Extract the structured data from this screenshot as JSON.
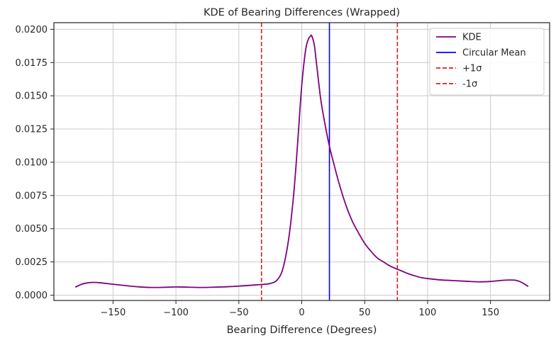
{
  "chart_data": {
    "type": "line",
    "title": "KDE of Bearing Differences (Wrapped)",
    "xlabel": "Bearing Difference (Degrees)",
    "ylabel": "",
    "xlim": [
      -197,
      197
    ],
    "ylim": [
      -0.0004,
      0.0205
    ],
    "x_ticks": [
      -150,
      -100,
      -50,
      0,
      50,
      100,
      150
    ],
    "x_tick_labels": [
      "−150",
      "−100",
      "−50",
      "0",
      "50",
      "100",
      "150"
    ],
    "y_ticks": [
      0.0,
      0.0025,
      0.005,
      0.0075,
      0.01,
      0.0125,
      0.015,
      0.0175,
      0.02
    ],
    "y_tick_labels": [
      "0.0000",
      "0.0025",
      "0.0050",
      "0.0075",
      "0.0100",
      "0.0125",
      "0.0150",
      "0.0175",
      "0.0200"
    ],
    "grid": true,
    "legend_position": "top-right",
    "series": [
      {
        "name": "KDE",
        "color": "#800080",
        "x": [
          -180,
          -175,
          -170,
          -165,
          -160,
          -150,
          -140,
          -130,
          -120,
          -110,
          -100,
          -90,
          -80,
          -70,
          -60,
          -50,
          -40,
          -32,
          -25,
          -20,
          -16,
          -13,
          -10,
          -7,
          -5,
          -3,
          0,
          3,
          5,
          7,
          8,
          10,
          12,
          15,
          18,
          22,
          26,
          30,
          35,
          40,
          45,
          50,
          55,
          60,
          65,
          70,
          76,
          80,
          85,
          90,
          95,
          100,
          110,
          120,
          130,
          140,
          150,
          160,
          165,
          170,
          175,
          180
        ],
        "y": [
          0.0006,
          0.00082,
          0.00093,
          0.00096,
          0.00093,
          0.00082,
          0.00072,
          0.00063,
          0.00058,
          0.00059,
          0.00062,
          0.0006,
          0.00058,
          0.0006,
          0.00063,
          0.00068,
          0.00075,
          0.0008,
          0.00088,
          0.0011,
          0.0017,
          0.0028,
          0.0045,
          0.007,
          0.0092,
          0.0118,
          0.0158,
          0.0184,
          0.0192,
          0.0195,
          0.0195,
          0.0188,
          0.0172,
          0.0148,
          0.0131,
          0.0112,
          0.0097,
          0.0083,
          0.0068,
          0.0056,
          0.0047,
          0.0039,
          0.0033,
          0.0028,
          0.0025,
          0.0022,
          0.00195,
          0.0018,
          0.0016,
          0.00145,
          0.00132,
          0.00125,
          0.00115,
          0.0011,
          0.00105,
          0.001,
          0.00103,
          0.00112,
          0.00114,
          0.00112,
          0.00095,
          0.00065
        ]
      }
    ],
    "vlines": [
      {
        "name": "Circular Mean",
        "x": 22,
        "color": "#0000ff",
        "style": "solid"
      },
      {
        "name": "+1σ",
        "x": 76,
        "color": "#e41a1c",
        "style": "dashed"
      },
      {
        "name": "-1σ",
        "x": -32,
        "color": "#e41a1c",
        "style": "dashed"
      }
    ]
  }
}
